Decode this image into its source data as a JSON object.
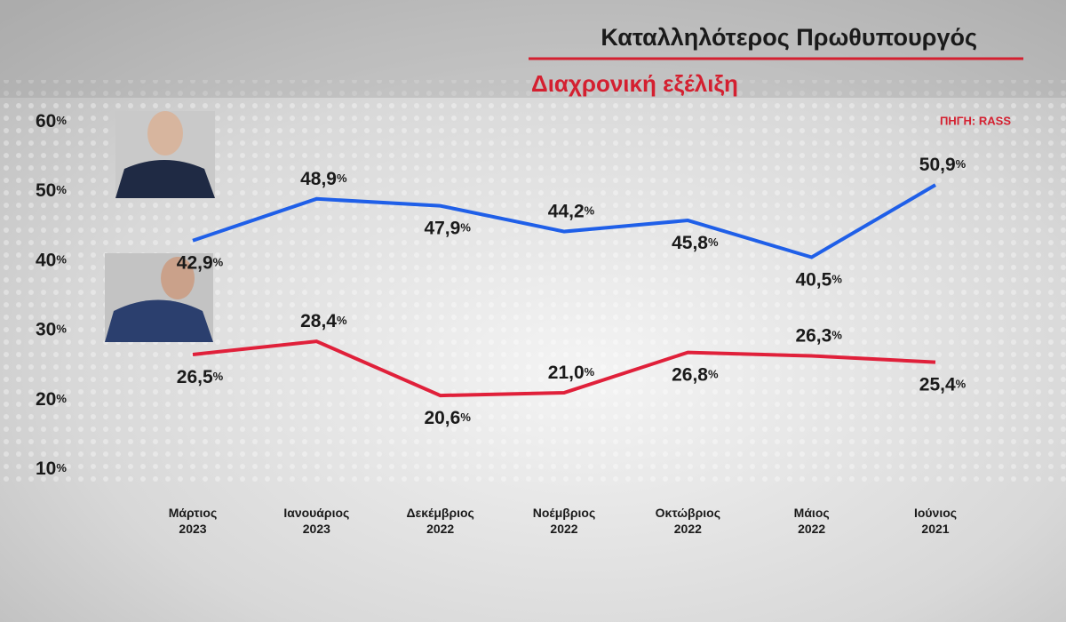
{
  "chart_data": {
    "type": "line",
    "title": "Καταλληλότερος Πρωθυπουργός",
    "subtitle": "Διαχρονική εξέλιξη",
    "source": "ΠΗΓΗ: RASS",
    "categories": [
      "Μάρτιος 2023",
      "Ιανουάριος 2023",
      "Δεκέμβριος 2022",
      "Νοέμβριος 2022",
      "Οκτώβριος 2022",
      "Μάιος 2022",
      "Ιούνιος 2021"
    ],
    "series": [
      {
        "color": "#1f5fe8",
        "values": [
          42.9,
          48.9,
          47.9,
          44.2,
          45.8,
          40.5,
          50.9
        ],
        "value_labels": [
          "42,9%",
          "48,9%",
          "47,9%",
          "44,2%",
          "45,8%",
          "40,5%",
          "50,9%"
        ]
      },
      {
        "color": "#e0203a",
        "values": [
          26.5,
          28.4,
          20.6,
          21.0,
          26.8,
          26.3,
          25.4
        ],
        "value_labels": [
          "26,5%",
          "28,4%",
          "20,6%",
          "21,0%",
          "26,8%",
          "26,3%",
          "25,4%"
        ]
      }
    ],
    "ylim": [
      10,
      60
    ],
    "yticks": [
      {
        "value": 10,
        "label": "10%"
      },
      {
        "value": 20,
        "label": "20%"
      },
      {
        "value": 30,
        "label": "30%"
      },
      {
        "value": 40,
        "label": "40%"
      },
      {
        "value": 50,
        "label": "50%"
      },
      {
        "value": 60,
        "label": "60%"
      }
    ]
  }
}
